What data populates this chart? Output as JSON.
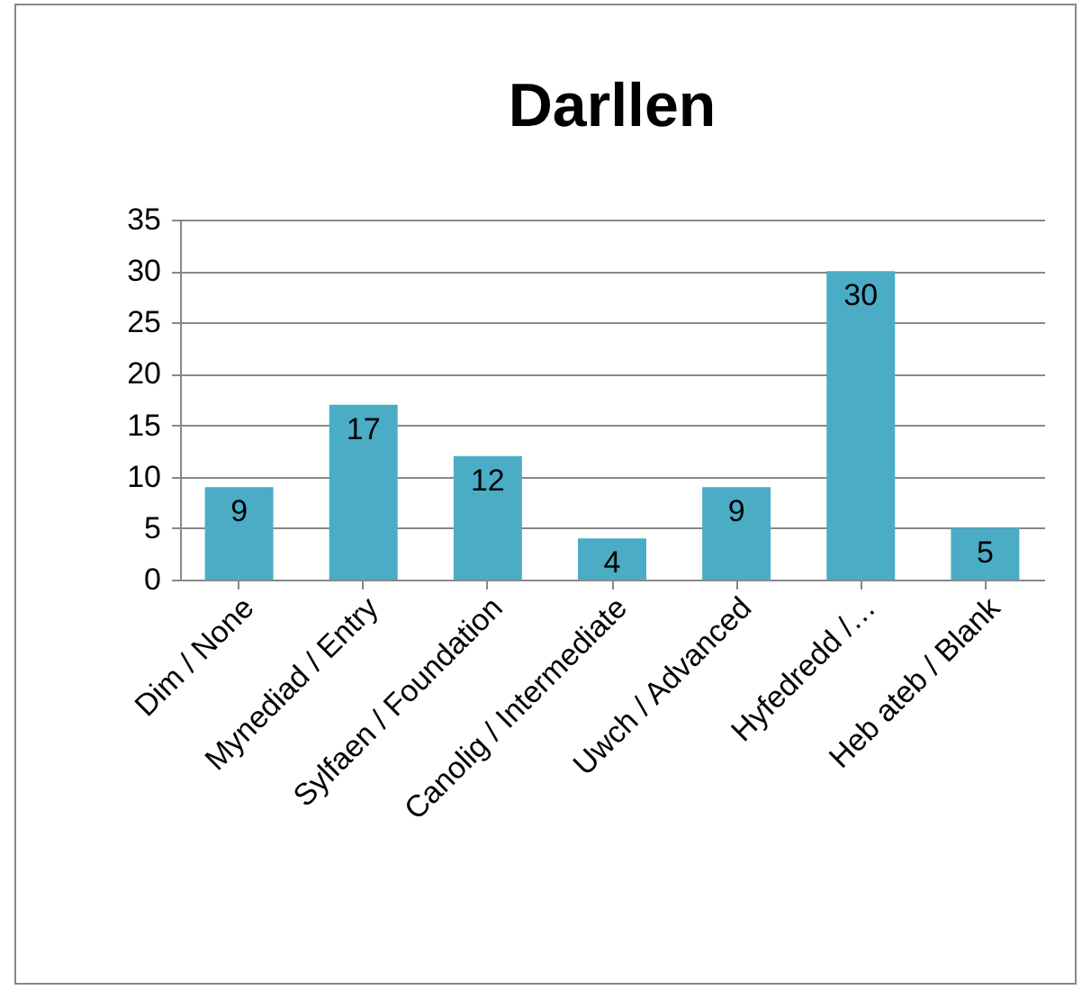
{
  "chart_data": {
    "type": "bar",
    "title": "Darllen",
    "categories": [
      "Dim / None",
      "Mynediad / Entry",
      "Sylfaen / Foundation",
      "Canolig / Intermediate",
      "Uwch / Advanced",
      "Hyfedredd /…",
      "Heb ateb / Blank"
    ],
    "values": [
      9,
      17,
      12,
      4,
      9,
      30,
      5
    ],
    "color": "#4bacc6",
    "ylim": [
      0,
      35
    ],
    "yticks": [
      0,
      5,
      10,
      15,
      20,
      25,
      30,
      35
    ],
    "grid": "y",
    "data_labels": true
  }
}
